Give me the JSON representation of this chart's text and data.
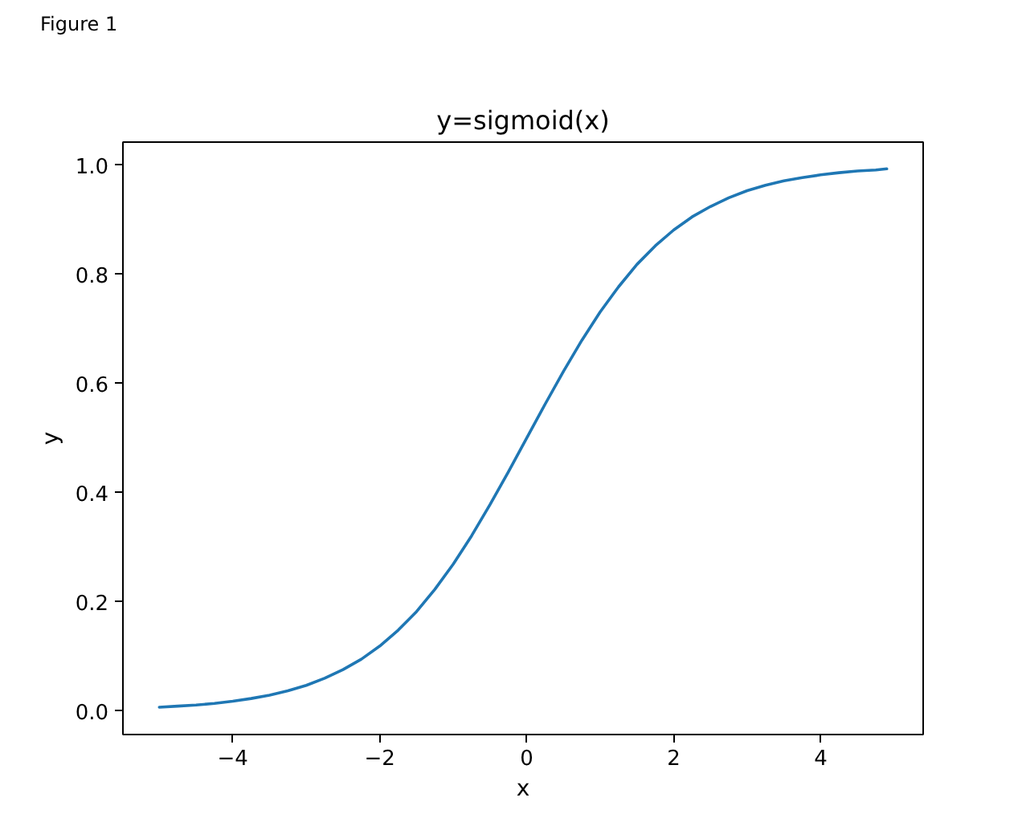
{
  "chart_data": {
    "type": "line",
    "title": "y=sigmoid(x)",
    "xlabel": "x",
    "ylabel": "y",
    "annotations": [
      "Figure 1"
    ],
    "x": [
      -5,
      -4.75,
      -4.5,
      -4.25,
      -4,
      -3.75,
      -3.5,
      -3.25,
      -3,
      -2.75,
      -2.5,
      -2.25,
      -2,
      -1.75,
      -1.5,
      -1.25,
      -1,
      -0.75,
      -0.5,
      -0.25,
      0,
      0.25,
      0.5,
      0.75,
      1,
      1.25,
      1.5,
      1.75,
      2,
      2.25,
      2.5,
      2.75,
      3,
      3.25,
      3.5,
      3.75,
      4,
      4.25,
      4.5,
      4.75,
      4.9
    ],
    "series": [
      {
        "color": "#1f77b4",
        "values": [
          0.007,
          0.009,
          0.011,
          0.014,
          0.018,
          0.023,
          0.029,
          0.037,
          0.047,
          0.06,
          0.076,
          0.095,
          0.119,
          0.148,
          0.182,
          0.223,
          0.269,
          0.321,
          0.378,
          0.438,
          0.5,
          0.562,
          0.622,
          0.679,
          0.731,
          0.777,
          0.818,
          0.852,
          0.881,
          0.905,
          0.924,
          0.94,
          0.953,
          0.963,
          0.971,
          0.977,
          0.982,
          0.986,
          0.989,
          0.991,
          0.993
        ]
      }
    ],
    "xlim": [
      -5.495,
      5.395
    ],
    "ylim": [
      -0.043,
      1.042
    ],
    "xticks": [
      {
        "value": -4,
        "label": "−4"
      },
      {
        "value": -2,
        "label": "−2"
      },
      0,
      2,
      4
    ],
    "yticks": [
      {
        "value": 0,
        "label": "0.0"
      },
      {
        "value": 0.2,
        "label": "0.2"
      },
      {
        "value": 0.4,
        "label": "0.4"
      },
      {
        "value": 0.6,
        "label": "0.6"
      },
      {
        "value": 0.8,
        "label": "0.8"
      },
      {
        "value": 1,
        "label": "1.0"
      }
    ]
  }
}
